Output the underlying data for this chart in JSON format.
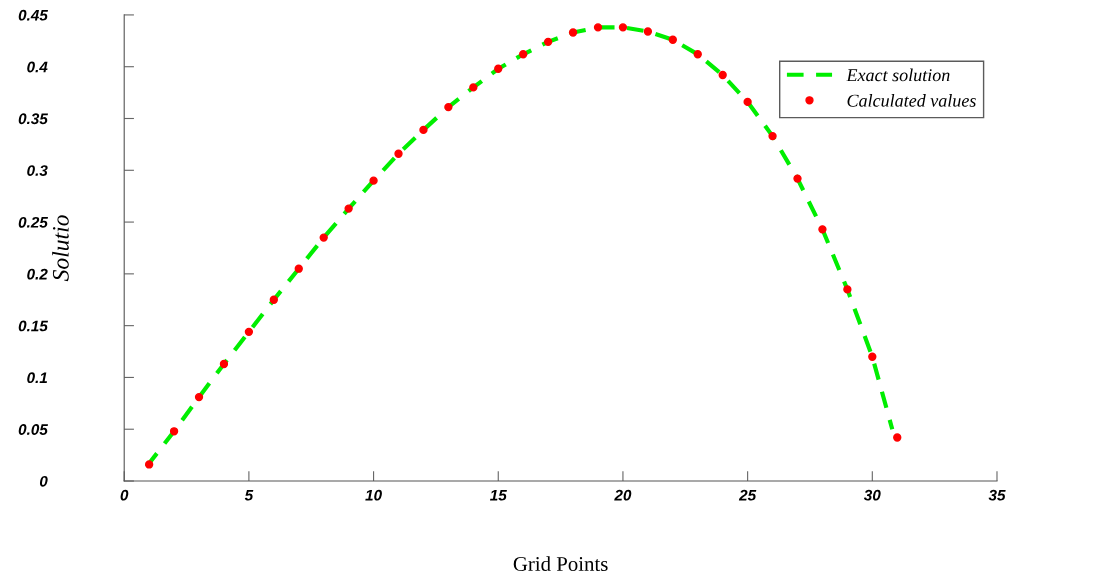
{
  "chart_data": {
    "type": "line",
    "xlabel": "Grid Points",
    "ylabel": "Solutio",
    "xlim": [
      0,
      35
    ],
    "xticks": [
      0,
      5,
      10,
      15,
      20,
      25,
      30,
      35
    ],
    "ylim": [
      0,
      0.45
    ],
    "yticks": [
      0,
      0.05,
      0.1,
      0.15,
      0.2,
      0.25,
      0.3,
      0.35,
      0.4,
      0.45
    ],
    "grid": false,
    "legend": "top right",
    "series": [
      {
        "name": "Exact solution",
        "color": "#00ee00",
        "line_style": "dashed",
        "marker": "none",
        "x": [
          0.9,
          2,
          3,
          4,
          5,
          6,
          7,
          8,
          9,
          10,
          11,
          12,
          13,
          14,
          15,
          16,
          17,
          18,
          19,
          20,
          21,
          22,
          23,
          24,
          25,
          26,
          27,
          28,
          29,
          30,
          30.8
        ],
        "values": [
          0.014,
          0.048,
          0.081,
          0.113,
          0.144,
          0.175,
          0.205,
          0.235,
          0.263,
          0.29,
          0.316,
          0.339,
          0.361,
          0.38,
          0.398,
          0.412,
          0.424,
          0.433,
          0.438,
          0.438,
          0.434,
          0.426,
          0.412,
          0.392,
          0.366,
          0.333,
          0.292,
          0.243,
          0.185,
          0.12,
          0.05
        ]
      },
      {
        "name": "Calculated values",
        "type": "scatter",
        "color": "#ff0000",
        "marker": "circle",
        "x": [
          1,
          2,
          3,
          4,
          5,
          6,
          7,
          8,
          9,
          10,
          11,
          12,
          13,
          14,
          15,
          16,
          17,
          18,
          19,
          20,
          21,
          22,
          23,
          24,
          25,
          26,
          27,
          28,
          29,
          30,
          31
        ],
        "values": [
          0.016,
          0.048,
          0.081,
          0.113,
          0.144,
          0.175,
          0.205,
          0.235,
          0.263,
          0.29,
          0.316,
          0.339,
          0.361,
          0.38,
          0.398,
          0.412,
          0.424,
          0.433,
          0.438,
          0.438,
          0.434,
          0.426,
          0.412,
          0.392,
          0.366,
          0.333,
          0.292,
          0.243,
          0.185,
          0.12,
          0.042
        ]
      }
    ]
  }
}
